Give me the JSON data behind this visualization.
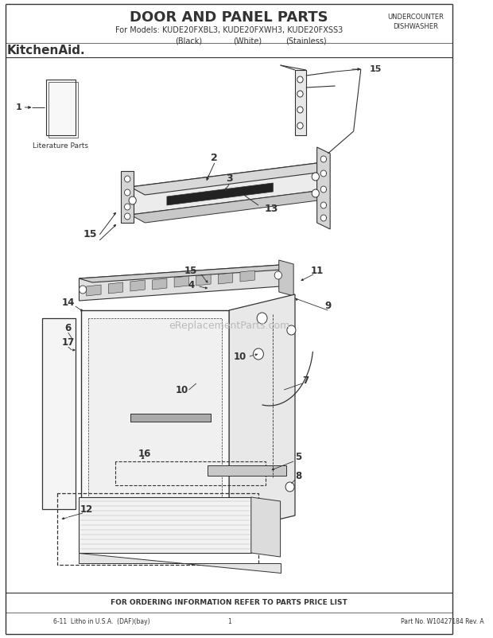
{
  "title": "DOOR AND PANEL PARTS",
  "subtitle_line1": "For Models: KUDE20FXBL3, KUDE20FXWH3, KUDE20FXSS3",
  "subtitle_line2_a": "(Black)",
  "subtitle_line2_b": "(White)",
  "subtitle_line2_c": "(Stainless)",
  "top_right_line1": "UNDERCOUNTER",
  "top_right_line2": "DISHWASHER",
  "brand": "KitchenAid.",
  "watermark": "eReplacementParts.com",
  "footer_center": "FOR ORDERING INFORMATION REFER TO PARTS PRICE LIST",
  "footer_left": "6-11  Litho in U.S.A.  (DAF)(bay)",
  "footer_mid": "1",
  "footer_right": "Part No. W10427184 Rev. A",
  "bg_color": "#ffffff",
  "line_color": "#333333"
}
